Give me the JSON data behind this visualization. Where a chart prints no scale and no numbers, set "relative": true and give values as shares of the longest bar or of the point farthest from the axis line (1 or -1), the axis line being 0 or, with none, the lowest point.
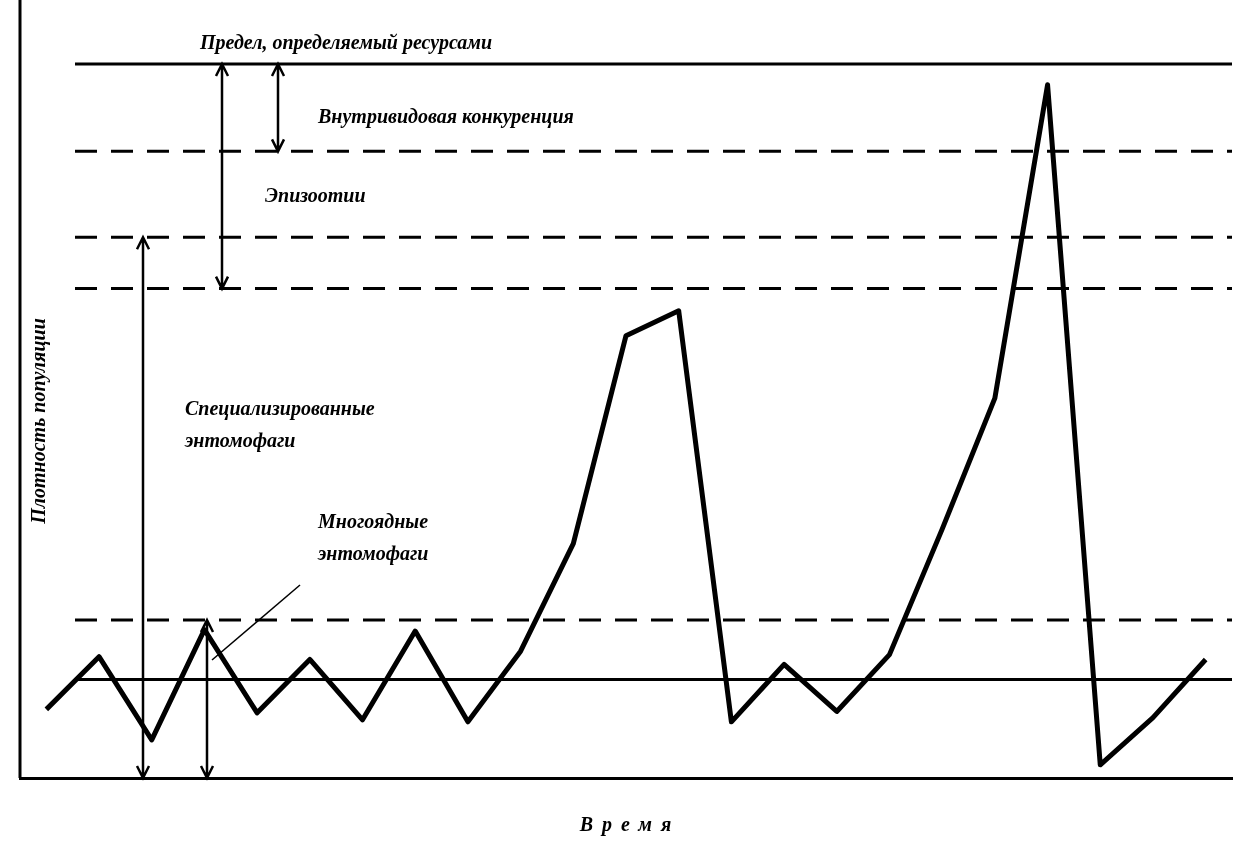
{
  "chart_data": {
    "type": "line",
    "relative": true,
    "xlabel": "Время",
    "ylabel": "Плотность популяции",
    "categories": [
      null,
      null,
      null,
      null,
      null,
      null,
      null,
      null,
      null,
      null,
      null,
      null,
      null,
      null,
      null,
      null,
      null,
      null,
      null,
      null,
      null,
      null,
      null
    ],
    "series": [
      {
        "color": "#000000",
        "values": [
          0.099,
          0.175,
          0.055,
          0.214,
          0.094,
          0.171,
          0.084,
          0.212,
          0.081,
          0.183,
          0.338,
          0.638,
          0.674,
          0.081,
          0.164,
          0.096,
          0.178,
          0.359,
          0.548,
          1,
          0.019,
          0.087,
          0.171
        ]
      }
    ],
    "ref_lines": [
      {
        "axis": "y",
        "value": 1.03,
        "label": "Предел, определяемый ресурсами",
        "line_style": "solid"
      },
      {
        "axis": "y",
        "value": 0.904,
        "line_style": "dashed"
      },
      {
        "axis": "y",
        "value": 0.78,
        "line_style": "dashed"
      },
      {
        "axis": "y",
        "value": 0.706,
        "line_style": "dashed"
      },
      {
        "axis": "y",
        "value": 0.228,
        "line_style": "dashed"
      },
      {
        "axis": "y",
        "value": 0.142,
        "line_style": "solid"
      }
    ],
    "annotations": [
      "Внутривидовая конкуренция",
      "Эпизоотии",
      "Специализированные\nэнтомофаги",
      "Многоядные\nэнтомофаги"
    ],
    "grid": false,
    "legend": false,
    "marker": "none",
    "line_style": "solid"
  }
}
